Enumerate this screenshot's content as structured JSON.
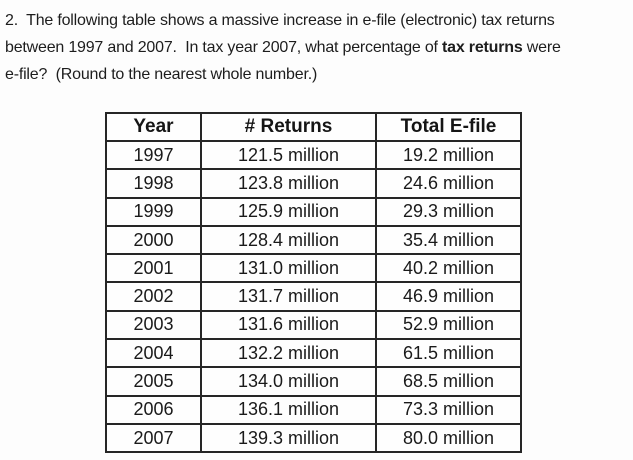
{
  "question": {
    "line1": "2.  The following table shows a massive increase in e-file (electronic) tax returns",
    "line2_pre": "between 1997 and 2007.  In tax year 2007, what percentage of ",
    "line2_bold": "tax returns",
    "line2_post": " were",
    "line3": "e-file?  (Round to the nearest whole number.)"
  },
  "table": {
    "columns": [
      "Year",
      "# Returns",
      "Total E-file"
    ],
    "rows": [
      [
        "1997",
        "121.5 million",
        "19.2 million"
      ],
      [
        "1998",
        "123.8 million",
        "24.6 million"
      ],
      [
        "1999",
        "125.9 million",
        "29.3 million"
      ],
      [
        "2000",
        "128.4 million",
        "35.4 million"
      ],
      [
        "2001",
        "131.0 million",
        "40.2 million"
      ],
      [
        "2002",
        "131.7 million",
        "46.9 million"
      ],
      [
        "2003",
        "131.6 million",
        "52.9 million"
      ],
      [
        "2004",
        "132.2 million",
        "61.5 million"
      ],
      [
        "2005",
        "134.0 million",
        "68.5 million"
      ],
      [
        "2006",
        "136.1 million",
        "73.3 million"
      ],
      [
        "2007",
        "139.3 million",
        "80.0 million"
      ]
    ]
  },
  "colors": {
    "text": "#1d1d1d",
    "table_border": "#262626",
    "background": "#fdfdfd"
  }
}
